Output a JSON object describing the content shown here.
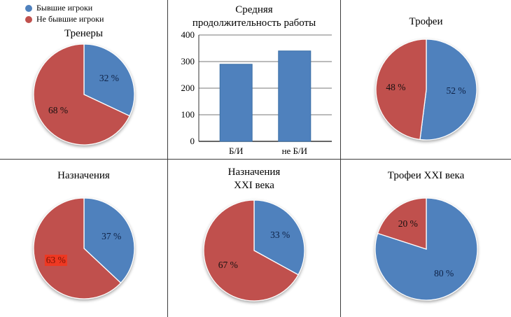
{
  "colors": {
    "blue": "#4f81bd",
    "red": "#c0504d"
  },
  "legend": {
    "items": [
      {
        "label": "Бывшие игроки",
        "color": "#4f81bd"
      },
      {
        "label": "Не бывшие игроки",
        "color": "#c0504d"
      }
    ]
  },
  "chart_data": [
    {
      "type": "pie",
      "title": "Тренеры",
      "categories": [
        "Бывшие игроки",
        "Не бывшие игроки"
      ],
      "values": [
        32,
        68
      ],
      "unit": "%",
      "legend_position": "top-left"
    },
    {
      "type": "bar",
      "title": "Средняя\nпродолжительность работы",
      "categories": [
        "Б/И",
        "не Б/И"
      ],
      "values": [
        290,
        340
      ],
      "ylim": [
        0,
        400
      ],
      "yticks": [
        0,
        100,
        200,
        300,
        400
      ],
      "grid": true,
      "xlabel": "",
      "ylabel": ""
    },
    {
      "type": "pie",
      "title": "Трофеи",
      "categories": [
        "Бывшие игроки",
        "Не бывшие игроки"
      ],
      "values": [
        52,
        48
      ],
      "unit": "%"
    },
    {
      "type": "pie",
      "title": "Назначения",
      "categories": [
        "Бывшие игроки",
        "Не бывшие игроки"
      ],
      "values": [
        37,
        63
      ],
      "unit": "%",
      "highlight_index": 1
    },
    {
      "type": "pie",
      "title": "Назначения\nXXI века",
      "categories": [
        "Бывшие игроки",
        "Не бывшие игроки"
      ],
      "values": [
        33,
        67
      ],
      "unit": "%"
    },
    {
      "type": "pie",
      "title": "Трофеи XXI века",
      "categories": [
        "Бывшие игроки",
        "Не бывшие игроки"
      ],
      "values": [
        80,
        20
      ],
      "unit": "%"
    }
  ]
}
